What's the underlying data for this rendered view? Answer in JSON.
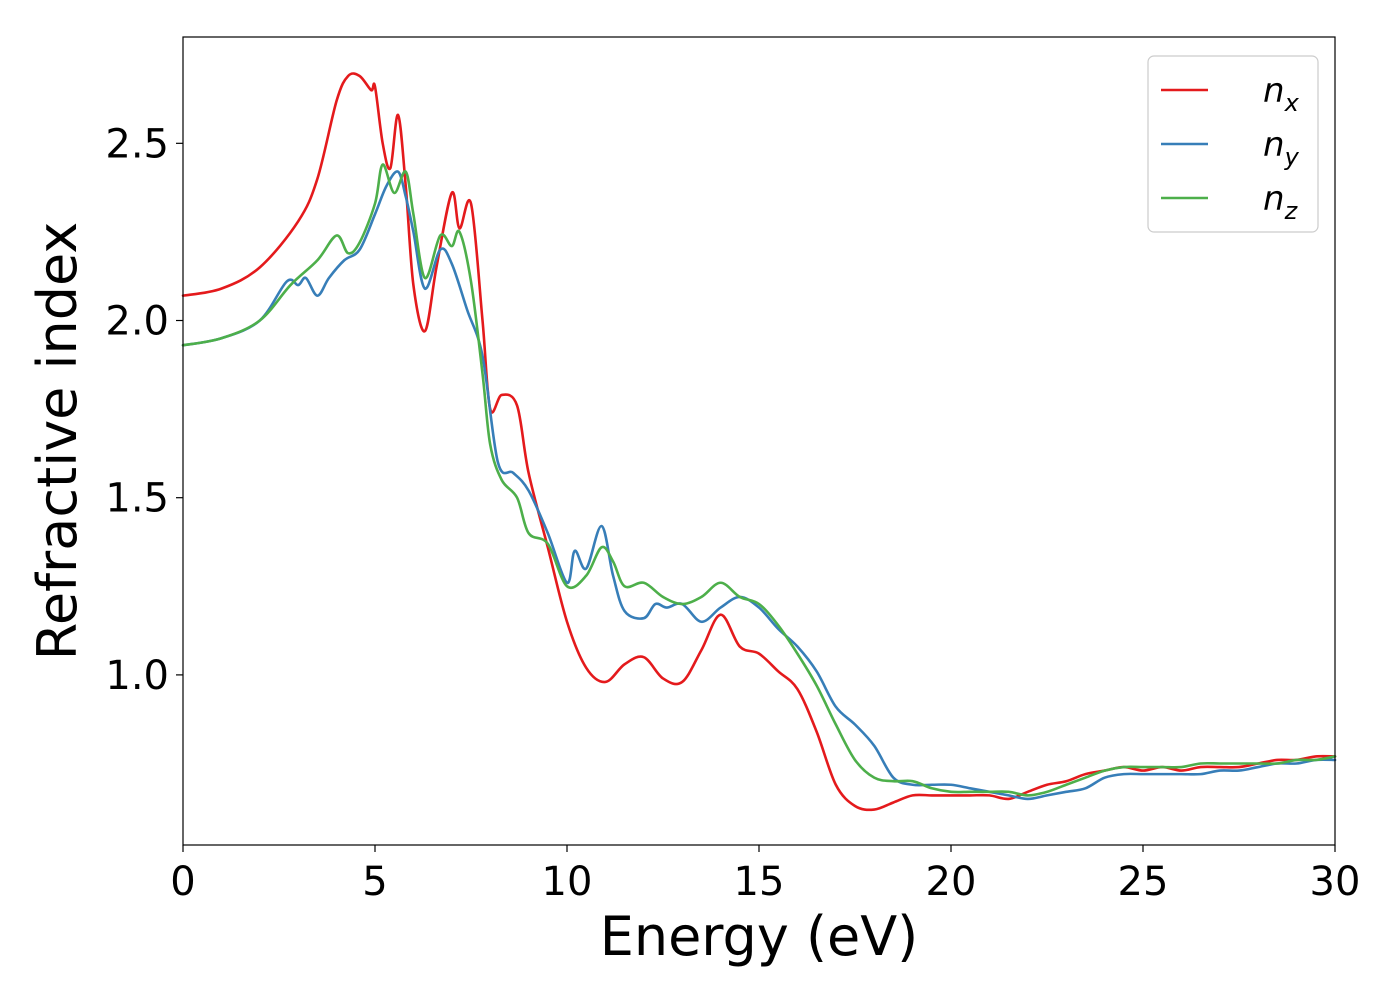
{
  "chart_data": {
    "type": "line",
    "xlabel": "Energy (eV)",
    "ylabel": "Refractive index",
    "xlim": [
      0,
      30
    ],
    "ylim": [
      0.52,
      2.8
    ],
    "xticks": [
      0,
      5,
      10,
      15,
      20,
      25,
      30
    ],
    "xtick_labels": [
      "0",
      "5",
      "10",
      "15",
      "20",
      "25",
      "30"
    ],
    "yticks": [
      1.0,
      1.5,
      2.0,
      2.5
    ],
    "ytick_labels": [
      "1.0",
      "1.5",
      "2.0",
      "2.5"
    ],
    "grid": false,
    "legend_position": "top-right",
    "series": [
      {
        "name": "n_x",
        "label_base": "n",
        "label_sub": "x",
        "color": "#e41a1c",
        "x": [
          0,
          1,
          2,
          3,
          3.5,
          4,
          4.3,
          4.6,
          4.9,
          5.0,
          5.2,
          5.4,
          5.6,
          5.8,
          6.0,
          6.3,
          6.6,
          7.0,
          7.2,
          7.5,
          7.8,
          8.0,
          8.3,
          8.7,
          9.0,
          9.5,
          10.0,
          10.5,
          11.0,
          11.5,
          12.0,
          12.5,
          13.0,
          13.5,
          14.0,
          14.5,
          15.0,
          15.5,
          16.0,
          16.5,
          17.0,
          17.5,
          18.0,
          18.5,
          19.0,
          19.5,
          20.0,
          20.5,
          21.0,
          21.5,
          22.0,
          22.5,
          23.0,
          23.5,
          24.0,
          24.5,
          25.0,
          25.5,
          26.0,
          26.5,
          27.0,
          27.5,
          28.0,
          28.5,
          29.0,
          29.5,
          30.0
        ],
        "y": [
          2.07,
          2.09,
          2.15,
          2.28,
          2.4,
          2.62,
          2.69,
          2.69,
          2.65,
          2.66,
          2.5,
          2.43,
          2.58,
          2.38,
          2.1,
          1.97,
          2.15,
          2.36,
          2.26,
          2.33,
          2.0,
          1.75,
          1.79,
          1.76,
          1.57,
          1.36,
          1.15,
          1.02,
          0.98,
          1.03,
          1.05,
          0.99,
          0.98,
          1.07,
          1.17,
          1.08,
          1.06,
          1.01,
          0.96,
          0.84,
          0.69,
          0.63,
          0.62,
          0.64,
          0.66,
          0.66,
          0.66,
          0.66,
          0.66,
          0.65,
          0.67,
          0.69,
          0.7,
          0.72,
          0.73,
          0.74,
          0.73,
          0.74,
          0.73,
          0.74,
          0.74,
          0.74,
          0.75,
          0.76,
          0.76,
          0.77,
          0.77
        ]
      },
      {
        "name": "n_y",
        "label_base": "n",
        "label_sub": "y",
        "color": "#377eb8",
        "x": [
          0,
          1,
          2,
          2.7,
          3.0,
          3.2,
          3.5,
          3.8,
          4.2,
          4.6,
          5.0,
          5.3,
          5.6,
          5.8,
          6.0,
          6.3,
          6.7,
          7.0,
          7.4,
          7.8,
          8.2,
          8.6,
          9.0,
          9.5,
          10.0,
          10.2,
          10.5,
          10.9,
          11.2,
          11.5,
          12.0,
          12.3,
          12.6,
          13.0,
          13.5,
          14.0,
          14.5,
          15.0,
          15.5,
          16.0,
          16.5,
          17.0,
          17.5,
          18.0,
          18.5,
          19.0,
          19.5,
          20.0,
          20.5,
          21.0,
          21.5,
          22.0,
          22.5,
          23.0,
          23.5,
          24.0,
          24.5,
          25.0,
          25.5,
          26.0,
          26.5,
          27.0,
          27.5,
          28.0,
          28.5,
          29.0,
          29.5,
          30.0
        ],
        "y": [
          1.93,
          1.95,
          2.0,
          2.11,
          2.1,
          2.12,
          2.07,
          2.12,
          2.17,
          2.2,
          2.3,
          2.38,
          2.42,
          2.35,
          2.25,
          2.09,
          2.2,
          2.16,
          2.03,
          1.9,
          1.6,
          1.57,
          1.52,
          1.4,
          1.26,
          1.35,
          1.3,
          1.42,
          1.28,
          1.18,
          1.16,
          1.2,
          1.19,
          1.2,
          1.15,
          1.19,
          1.22,
          1.19,
          1.13,
          1.08,
          1.01,
          0.91,
          0.86,
          0.8,
          0.71,
          0.69,
          0.69,
          0.69,
          0.68,
          0.67,
          0.66,
          0.65,
          0.66,
          0.67,
          0.68,
          0.71,
          0.72,
          0.72,
          0.72,
          0.72,
          0.72,
          0.73,
          0.73,
          0.74,
          0.75,
          0.75,
          0.76,
          0.76
        ]
      },
      {
        "name": "n_z",
        "label_base": "n",
        "label_sub": "z",
        "color": "#4daf4a",
        "x": [
          0,
          1,
          2,
          2.8,
          3.5,
          4.0,
          4.3,
          4.6,
          5.0,
          5.2,
          5.5,
          5.8,
          6.0,
          6.3,
          6.7,
          7.0,
          7.2,
          7.5,
          7.8,
          8.0,
          8.3,
          8.7,
          9.0,
          9.5,
          10.0,
          10.5,
          10.9,
          11.2,
          11.5,
          12.0,
          12.5,
          13.0,
          13.5,
          14.0,
          14.5,
          15.0,
          15.5,
          16.0,
          16.5,
          17.0,
          17.5,
          18.0,
          18.5,
          19.0,
          19.5,
          20.0,
          20.5,
          21.0,
          21.5,
          22.0,
          22.5,
          23.0,
          23.5,
          24.0,
          24.5,
          25.0,
          25.5,
          26.0,
          26.5,
          27.0,
          27.5,
          28.0,
          28.5,
          29.0,
          29.5,
          30.0
        ],
        "y": [
          1.93,
          1.95,
          2.0,
          2.1,
          2.17,
          2.24,
          2.19,
          2.22,
          2.33,
          2.44,
          2.36,
          2.42,
          2.3,
          2.12,
          2.24,
          2.21,
          2.25,
          2.11,
          1.85,
          1.65,
          1.55,
          1.5,
          1.4,
          1.37,
          1.25,
          1.28,
          1.36,
          1.32,
          1.25,
          1.26,
          1.22,
          1.2,
          1.22,
          1.26,
          1.22,
          1.2,
          1.14,
          1.06,
          0.97,
          0.86,
          0.76,
          0.71,
          0.7,
          0.7,
          0.68,
          0.67,
          0.67,
          0.67,
          0.67,
          0.66,
          0.67,
          0.69,
          0.71,
          0.73,
          0.74,
          0.74,
          0.74,
          0.74,
          0.75,
          0.75,
          0.75,
          0.75,
          0.75,
          0.76,
          0.76,
          0.77
        ]
      }
    ]
  }
}
